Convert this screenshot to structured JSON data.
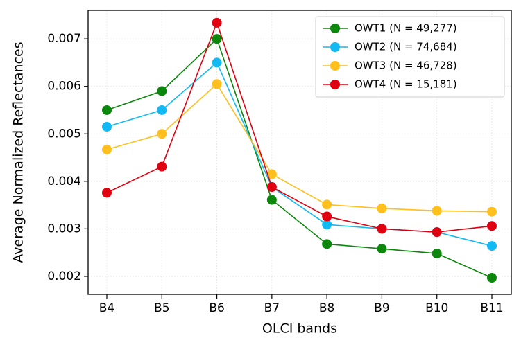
{
  "chart_data": {
    "type": "line",
    "x_label": "OLCI bands",
    "y_label": "Average Normalized Reflectances",
    "categories": [
      "B4",
      "B5",
      "B6",
      "B7",
      "B8",
      "B9",
      "B10",
      "B11"
    ],
    "series": [
      {
        "name": "OWT1 (N = 49,277)",
        "color": "#0b870b",
        "values": [
          0.0055,
          0.0059,
          0.007,
          0.00361,
          0.00268,
          0.00258,
          0.00248,
          0.00197
        ]
      },
      {
        "name": "OWT2 (N = 74,684)",
        "color": "#12b9f2",
        "values": [
          0.00515,
          0.0055,
          0.0065,
          0.00388,
          0.00309,
          0.003,
          0.00293,
          0.00264
        ]
      },
      {
        "name": "OWT3 (N = 46,728)",
        "color": "#ffbf1c",
        "values": [
          0.00467,
          0.005,
          0.00605,
          0.00415,
          0.00351,
          0.00343,
          0.00338,
          0.00336
        ]
      },
      {
        "name": "OWT4 (N = 15,181)",
        "color": "#e0000f",
        "values": [
          0.00376,
          0.00431,
          0.00734,
          0.00388,
          0.00326,
          0.003,
          0.00293,
          0.00306
        ]
      }
    ],
    "ylim": [
      0.00162,
      0.0076
    ],
    "yticks": [
      0.002,
      0.003,
      0.004,
      0.005,
      0.006,
      0.007
    ],
    "grid": true,
    "legend": "upper right"
  }
}
